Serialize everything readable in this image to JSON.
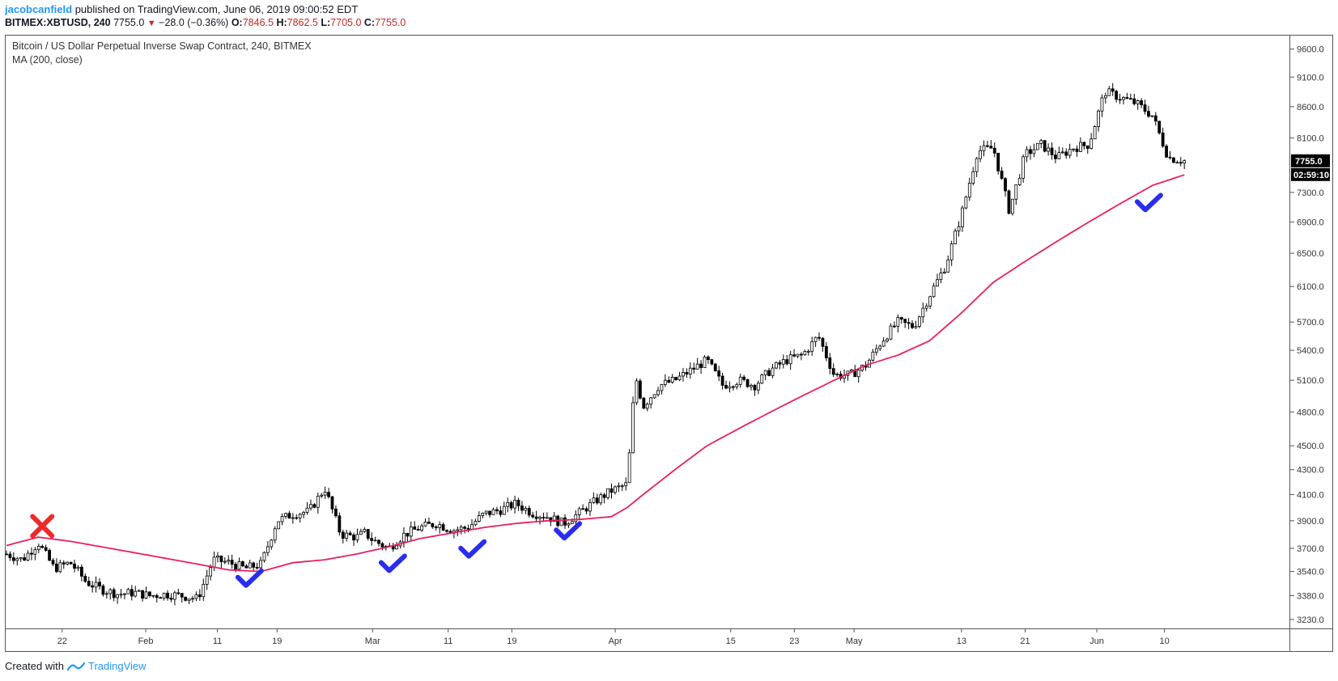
{
  "header": {
    "author": "jacobcanfield",
    "published": "published on TradingView.com, June 06, 2019 09:00:52 EDT",
    "symbol": "BITMEX:XBTUSD, 240",
    "last": "7755.0",
    "change": "−28.0 (−0.36%)",
    "o_label": "O:",
    "o": "7846.5",
    "h_label": "H:",
    "h": "7862.5",
    "l_label": "L:",
    "l": "7705.0",
    "c_label": "C:",
    "c": "7755.0"
  },
  "legend": {
    "title": "Bitcoin / US Dollar Perpetual Inverse Swap Contract, 240, BITMEX",
    "indicator": "MA (200, close)"
  },
  "price_label": {
    "value": "7755.0",
    "countdown": "02:59:10"
  },
  "footer": {
    "created_with": "Created with",
    "brand": "TradingView"
  },
  "colors": {
    "ma": "#e91e63",
    "candle": "#000000",
    "check": "#2a2df0",
    "cross": "#f02a2a",
    "axis": "#555555"
  },
  "chart_data": {
    "type": "line",
    "title": "Bitcoin / US Dollar Perpetual Inverse Swap Contract, 240, BITMEX",
    "xlabel": "",
    "ylabel": "",
    "x_ticks": [
      "22",
      "Feb",
      "11",
      "19",
      "Mar",
      "11",
      "19",
      "Apr",
      "15",
      "23",
      "May",
      "13",
      "21",
      "Jun",
      "10"
    ],
    "y_ticks": [
      3230,
      3380,
      3540,
      3700,
      3900,
      4100,
      4300,
      4500,
      4800,
      5100,
      5400,
      5700,
      6100,
      6500,
      6900,
      7300,
      7755,
      8100,
      8600,
      9100,
      9600
    ],
    "y_tick_labels": [
      "3230.0",
      "3380.0",
      "3540.0",
      "3700.0",
      "3900.0",
      "4100.0",
      "4300.0",
      "4500.0",
      "4800.0",
      "5100.0",
      "5400.0",
      "5700.0",
      "6100.0",
      "6500.0",
      "6900.0",
      "7300.0",
      "7755.0",
      "8100.0",
      "8600.0",
      "9100.0",
      "9600.0"
    ],
    "ylim": [
      3180,
      9850
    ],
    "y_scale": "log",
    "grid": false,
    "series": [
      {
        "name": "",
        "values_x": [
          0,
          2,
          4,
          6,
          8,
          9,
          10,
          12,
          14,
          16,
          18,
          20,
          22,
          24,
          26,
          28,
          30,
          32,
          34,
          36,
          38,
          40,
          42,
          44,
          45,
          46,
          48,
          50,
          52,
          54,
          56,
          58,
          60,
          62,
          64,
          66,
          68,
          70,
          72,
          74,
          76,
          78,
          79,
          80,
          82,
          84,
          86,
          88,
          90,
          92,
          94,
          96,
          98,
          100,
          102,
          104,
          106,
          108,
          110,
          112,
          114,
          116,
          118,
          120,
          122,
          124,
          126,
          128,
          130,
          132,
          134,
          136,
          138,
          140,
          142,
          144,
          146,
          148
        ],
        "values": [
          3660,
          3620,
          3740,
          3560,
          3600,
          3540,
          3470,
          3420,
          3390,
          3400,
          3380,
          3390,
          3380,
          3360,
          3620,
          3600,
          3560,
          3590,
          3900,
          3950,
          3970,
          4150,
          3800,
          3780,
          3810,
          3760,
          3700,
          3800,
          3850,
          3880,
          3830,
          3850,
          3950,
          3980,
          4030,
          3960,
          3930,
          3880,
          3960,
          4050,
          4130,
          4180,
          5150,
          4850,
          5050,
          5100,
          5200,
          5300,
          5050,
          5100,
          5050,
          5200,
          5300,
          5350,
          5550,
          5150,
          5150,
          5250,
          5500,
          5700,
          5650,
          6000,
          6350,
          7000,
          7900,
          7950,
          7050,
          7850,
          8000,
          7800,
          7950,
          8000,
          8850,
          8750,
          8650,
          8450,
          7800,
          7755
        ]
      },
      {
        "name": "",
        "values_x": [
          0,
          4,
          8,
          12,
          16,
          20,
          24,
          28,
          32,
          36,
          40,
          44,
          48,
          52,
          56,
          60,
          64,
          68,
          72,
          76,
          78,
          80,
          84,
          88,
          92,
          96,
          100,
          104,
          108,
          112,
          116,
          120,
          124,
          128,
          132,
          136,
          140,
          144,
          148
        ],
        "values": [
          3720,
          3780,
          3750,
          3710,
          3670,
          3630,
          3590,
          3550,
          3540,
          3600,
          3620,
          3660,
          3710,
          3770,
          3810,
          3850,
          3880,
          3900,
          3910,
          3930,
          4000,
          4100,
          4300,
          4500,
          4650,
          4800,
          4950,
          5100,
          5250,
          5350,
          5500,
          5800,
          6150,
          6400,
          6650,
          6900,
          7150,
          7400,
          7550
        ]
      }
    ],
    "annotations": [
      {
        "type": "cross",
        "x": 4.5,
        "y": 3860
      },
      {
        "type": "check",
        "x": 30.5,
        "y": 3490
      },
      {
        "type": "check",
        "x": 48.5,
        "y": 3590
      },
      {
        "type": "check",
        "x": 58.5,
        "y": 3690
      },
      {
        "type": "check",
        "x": 70.5,
        "y": 3820
      },
      {
        "type": "check",
        "x": 143.5,
        "y": 7150
      }
    ]
  }
}
